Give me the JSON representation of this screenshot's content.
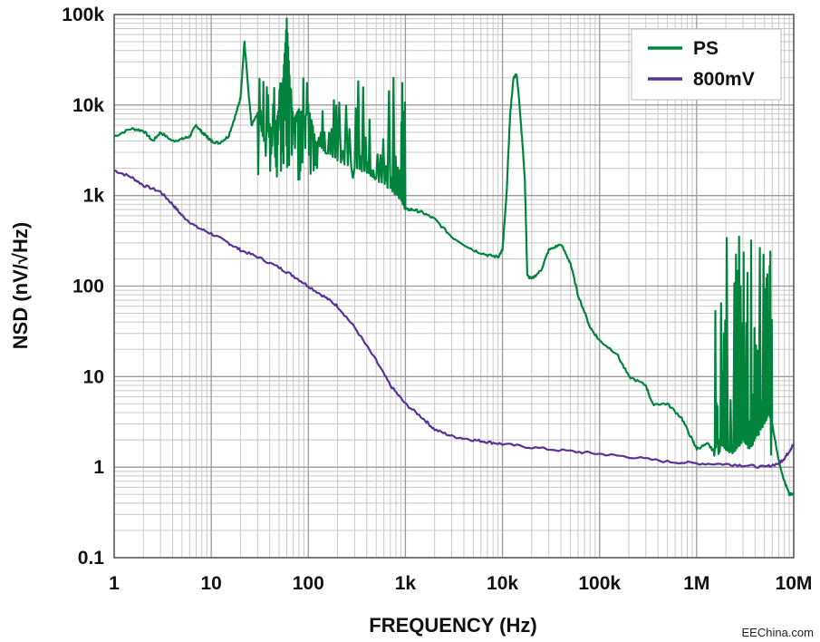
{
  "chart_data": {
    "type": "line",
    "xlabel": "FREQUENCY (Hz)",
    "ylabel": "NSD (nV/√Hz)",
    "x_scale": "log",
    "y_scale": "log",
    "xlim": [
      1,
      10000000
    ],
    "ylim": [
      0.1,
      100000
    ],
    "grid": true,
    "legend_position": "top-right",
    "x_ticks": [
      {
        "value": 1,
        "label": "1"
      },
      {
        "value": 10,
        "label": "10"
      },
      {
        "value": 100,
        "label": "100"
      },
      {
        "value": 1000,
        "label": "1k"
      },
      {
        "value": 10000,
        "label": "10k"
      },
      {
        "value": 100000,
        "label": "100k"
      },
      {
        "value": 1000000,
        "label": "1M"
      },
      {
        "value": 10000000,
        "label": "10M"
      }
    ],
    "y_ticks": [
      {
        "value": 0.1,
        "label": "0.1"
      },
      {
        "value": 1,
        "label": "1"
      },
      {
        "value": 10,
        "label": "10"
      },
      {
        "value": 100,
        "label": "100"
      },
      {
        "value": 1000,
        "label": "1k"
      },
      {
        "value": 10000,
        "label": "10k"
      },
      {
        "value": 100000,
        "label": "100k"
      }
    ],
    "series": [
      {
        "name": "PS",
        "color": "#00843d",
        "x": [
          1,
          1.5,
          2,
          2.5,
          3,
          4,
          5,
          6,
          7,
          8,
          9,
          10,
          12,
          15,
          18,
          20,
          22,
          24,
          26,
          30,
          35,
          40,
          45,
          50,
          55,
          60,
          65,
          70,
          80,
          90,
          100,
          120,
          150,
          200,
          300,
          400,
          500,
          700,
          900,
          1000,
          1200,
          1500,
          2000,
          3000,
          5000,
          7000,
          9000,
          10000,
          11000,
          12000,
          13000,
          14000,
          15000,
          16000,
          17000,
          18000,
          20000,
          25000,
          30000,
          40000,
          50000,
          60000,
          80000,
          100000,
          150000,
          200000,
          300000,
          350000,
          500000,
          700000,
          900000,
          1000000,
          1300000,
          1500000,
          1700000,
          2000000,
          2500000,
          3000000,
          3500000,
          4000000,
          5000000,
          5500000,
          6000000,
          7000000,
          8000000,
          9000000,
          10000000
        ],
        "values": [
          4500,
          5500,
          5200,
          4000,
          5000,
          4000,
          4200,
          4500,
          6000,
          5000,
          4500,
          4000,
          3800,
          4500,
          8000,
          12000,
          50000,
          15000,
          6000,
          8000,
          4000,
          6000,
          5000,
          10000,
          20000,
          90000,
          15000,
          7000,
          9000,
          6000,
          10000,
          4000,
          3000,
          2500,
          2000,
          1800,
          1500,
          1200,
          900,
          700,
          700,
          650,
          550,
          350,
          250,
          220,
          210,
          250,
          1000,
          8000,
          20000,
          22000,
          10000,
          4000,
          1500,
          130,
          120,
          150,
          250,
          290,
          180,
          80,
          35,
          25,
          18,
          10,
          8,
          5,
          5,
          3.5,
          2,
          1.6,
          1.8,
          1.5,
          2,
          1.5,
          1.5,
          2,
          1.6,
          2,
          3,
          4,
          3,
          1.2,
          0.7,
          0.5,
          0.5
        ]
      },
      {
        "name": "800mV",
        "color": "#5a3296",
        "x": [
          1,
          1.5,
          2,
          3,
          4,
          5,
          7,
          10,
          15,
          20,
          30,
          50,
          70,
          100,
          150,
          200,
          300,
          500,
          700,
          1000,
          1500,
          2000,
          3000,
          5000,
          7000,
          10000,
          20000,
          50000,
          100000,
          200000,
          500000,
          1000000,
          2000000,
          3000000,
          5000000,
          7000000,
          8000000,
          9000000,
          10000000
        ],
        "values": [
          1900,
          1600,
          1300,
          1100,
          800,
          600,
          450,
          380,
          300,
          250,
          210,
          160,
          130,
          100,
          75,
          60,
          35,
          15,
          8,
          5,
          3.5,
          2.6,
          2.2,
          2.0,
          1.9,
          1.8,
          1.65,
          1.5,
          1.4,
          1.3,
          1.15,
          1.1,
          1.08,
          1.05,
          1.0,
          1.1,
          1.25,
          1.5,
          1.8
        ]
      }
    ],
    "spikes_PS": {
      "description_free": true,
      "band_1": {
        "x_range": [
          30,
          1000
        ],
        "low": 1500,
        "high": 20000
      },
      "band_2": {
        "x_range": [
          1500000,
          6000000
        ],
        "low": 1.3,
        "high": 450
      }
    }
  },
  "watermark": "EEChina.com"
}
